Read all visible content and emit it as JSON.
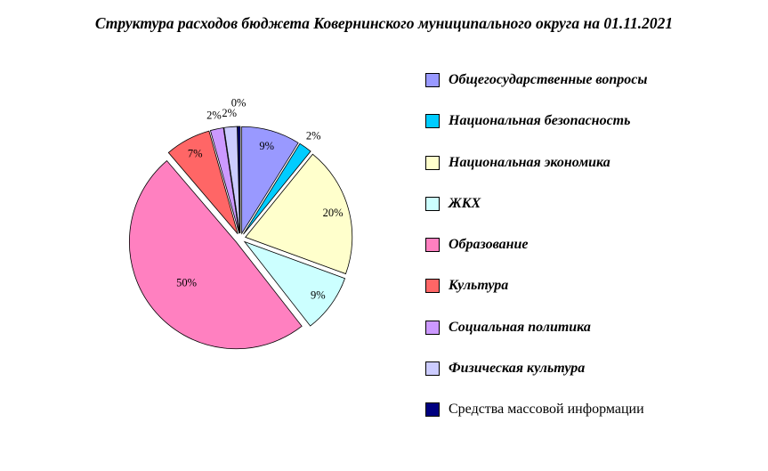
{
  "title": "Структура расходов бюджета Ковернинского муниципального округа на 01.11.2021",
  "chart_data": {
    "type": "pie",
    "title": "Структура расходов бюджета Ковернинского муниципального округа на 01.11.2021",
    "legend_position": "right",
    "start_angle_deg": 90,
    "direction": "clockwise",
    "slices": [
      {
        "label": "Общегосударственные вопросы",
        "value": 9,
        "display": "9%",
        "color": "#9999FF"
      },
      {
        "label": "Национальная безопасность",
        "value": 2,
        "display": "2%",
        "color": "#00CCFF"
      },
      {
        "label": "Национальная экономика",
        "value": 20,
        "display": "20%",
        "color": "#FFFFCC"
      },
      {
        "label": "ЖКХ",
        "value": 9,
        "display": "9%",
        "color": "#CCFFFF"
      },
      {
        "label": "Образование",
        "value": 50,
        "display": "50%",
        "color": "#FF80C0"
      },
      {
        "label": "Культура",
        "value": 7,
        "display": "7%",
        "color": "#FF6666"
      },
      {
        "label": "Социальная политика",
        "value": 2,
        "display": "2%",
        "color": "#CC99FF"
      },
      {
        "label": "Физическая культура",
        "value": 2,
        "display": "2%",
        "color": "#CCCCFF"
      },
      {
        "label": "Средства массовой информации",
        "value": 0.4,
        "display": "0%",
        "color": "#000080"
      }
    ]
  }
}
